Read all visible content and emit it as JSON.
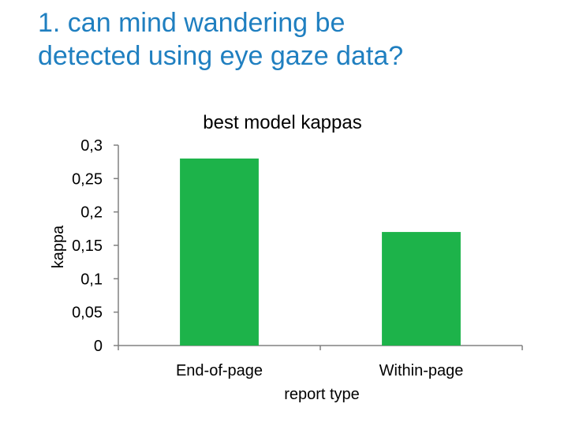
{
  "slide": {
    "title_line1": "1. can mind wandering be",
    "title_line2": "detected using eye gaze data?"
  },
  "colors": {
    "title": "#1f7fc0",
    "bar": "#1db34a",
    "axis": "#808080"
  },
  "chart_data": {
    "type": "bar",
    "title": "best model kappas",
    "xlabel": "report type",
    "ylabel": "kappa",
    "categories": [
      "End-of-page",
      "Within-page"
    ],
    "values": [
      0.28,
      0.17
    ],
    "ylim": [
      0,
      0.3
    ],
    "yticks": [
      0,
      0.05,
      0.1,
      0.15,
      0.2,
      0.25,
      0.3
    ],
    "ytick_labels": [
      "0",
      "0,05",
      "0,1",
      "0,15",
      "0,2",
      "0,25",
      "0,3"
    ],
    "grid": false,
    "legend": "none"
  }
}
